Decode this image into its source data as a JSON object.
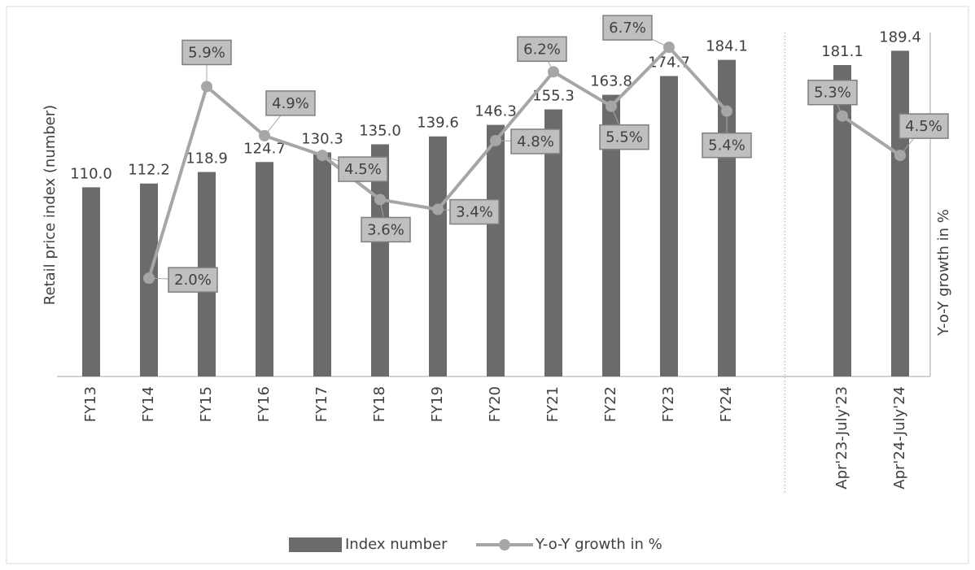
{
  "chart_data": {
    "type": "bar-line",
    "categories": [
      "FY13",
      "FY14",
      "FY15",
      "FY16",
      "FY17",
      "FY18",
      "FY19",
      "FY20",
      "FY21",
      "FY22",
      "FY23",
      "FY24",
      null,
      "Apr'23-July'23",
      "Apr'24-July'24"
    ],
    "ylabel": "Retail price index (number)",
    "y2label": "Y-o-Y growth in %",
    "ylim": [
      0,
      200
    ],
    "y2lim": [
      0,
      7
    ],
    "series": [
      {
        "name": "Index number",
        "color": "#6b6b6b",
        "type": "bar",
        "values": [
          110.0,
          112.2,
          118.9,
          124.7,
          130.3,
          135.0,
          139.6,
          146.3,
          155.3,
          163.8,
          174.7,
          184.1,
          null,
          181.1,
          189.4
        ],
        "value_labels": [
          "110.0",
          "112.2",
          "118.9",
          "124.7",
          "130.3",
          "135.0",
          "139.6",
          "146.3",
          "155.3",
          "163.8",
          "174.7",
          "184.1",
          null,
          "181.1",
          "189.4"
        ]
      },
      {
        "name": "Y-o-Y growth in %",
        "color": "#a6a6a6",
        "type": "line",
        "axis": "y2",
        "values": [
          null,
          2.0,
          5.9,
          4.9,
          4.5,
          3.6,
          3.4,
          4.8,
          6.2,
          5.5,
          6.7,
          5.4,
          null,
          5.3,
          4.5
        ],
        "value_labels": [
          null,
          "2.0%",
          "5.9%",
          "4.9%",
          "4.5%",
          "3.6%",
          "3.4%",
          "4.8%",
          "6.2%",
          "5.5%",
          "6.7%",
          "5.4%",
          null,
          "5.3%",
          "4.5%"
        ]
      }
    ]
  }
}
